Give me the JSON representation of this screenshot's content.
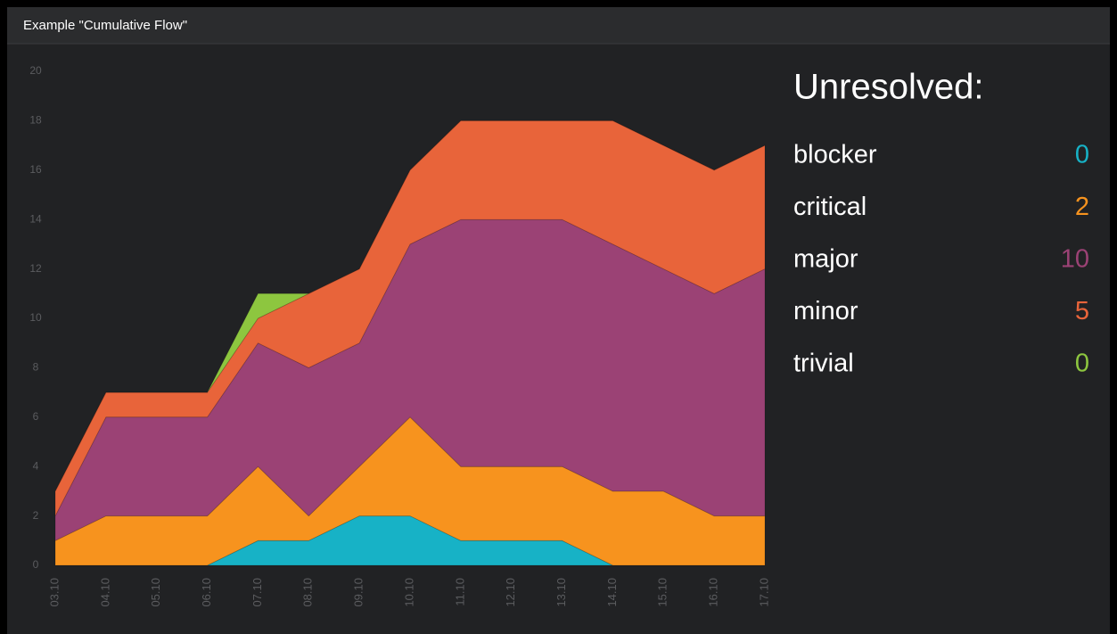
{
  "widget": {
    "title": "Example \"Cumulative Flow\""
  },
  "chart_data": {
    "type": "stacked-area",
    "categories": [
      "03.10",
      "04.10",
      "05.10",
      "06.10",
      "07.10",
      "08.10",
      "09.10",
      "10.10",
      "11.10",
      "12.10",
      "13.10",
      "14.10",
      "15.10",
      "16.10",
      "17.10"
    ],
    "series": [
      {
        "name": "blocker",
        "color": "#17b2c6",
        "values": [
          0,
          0,
          0,
          0,
          1,
          1,
          2,
          2,
          1,
          1,
          1,
          0,
          0,
          0,
          0
        ]
      },
      {
        "name": "critical",
        "color": "#f7931e",
        "values": [
          1,
          2,
          2,
          2,
          3,
          1,
          2,
          4,
          3,
          3,
          3,
          3,
          3,
          2,
          2
        ]
      },
      {
        "name": "major",
        "color": "#9b4275",
        "values": [
          1,
          4,
          4,
          4,
          5,
          6,
          5,
          7,
          10,
          10,
          10,
          10,
          9,
          9,
          10
        ]
      },
      {
        "name": "minor",
        "color": "#e8643a",
        "values": [
          1,
          1,
          1,
          1,
          1,
          3,
          3,
          3,
          4,
          4,
          4,
          5,
          5,
          5,
          5
        ]
      },
      {
        "name": "trivial",
        "color": "#8dc63f",
        "values": [
          0,
          0,
          0,
          0,
          1,
          0,
          0,
          0,
          0,
          0,
          0,
          0,
          0,
          0,
          0
        ]
      }
    ],
    "ylim": [
      0,
      20
    ],
    "yticks": [
      0,
      2,
      4,
      6,
      8,
      10,
      12,
      14,
      16,
      18,
      20
    ]
  },
  "summary": {
    "title": "Unresolved:",
    "items": [
      {
        "name": "blocker",
        "value": 0
      },
      {
        "name": "critical",
        "value": 2
      },
      {
        "name": "major",
        "value": 10
      },
      {
        "name": "minor",
        "value": 5
      },
      {
        "name": "trivial",
        "value": 0
      }
    ]
  }
}
